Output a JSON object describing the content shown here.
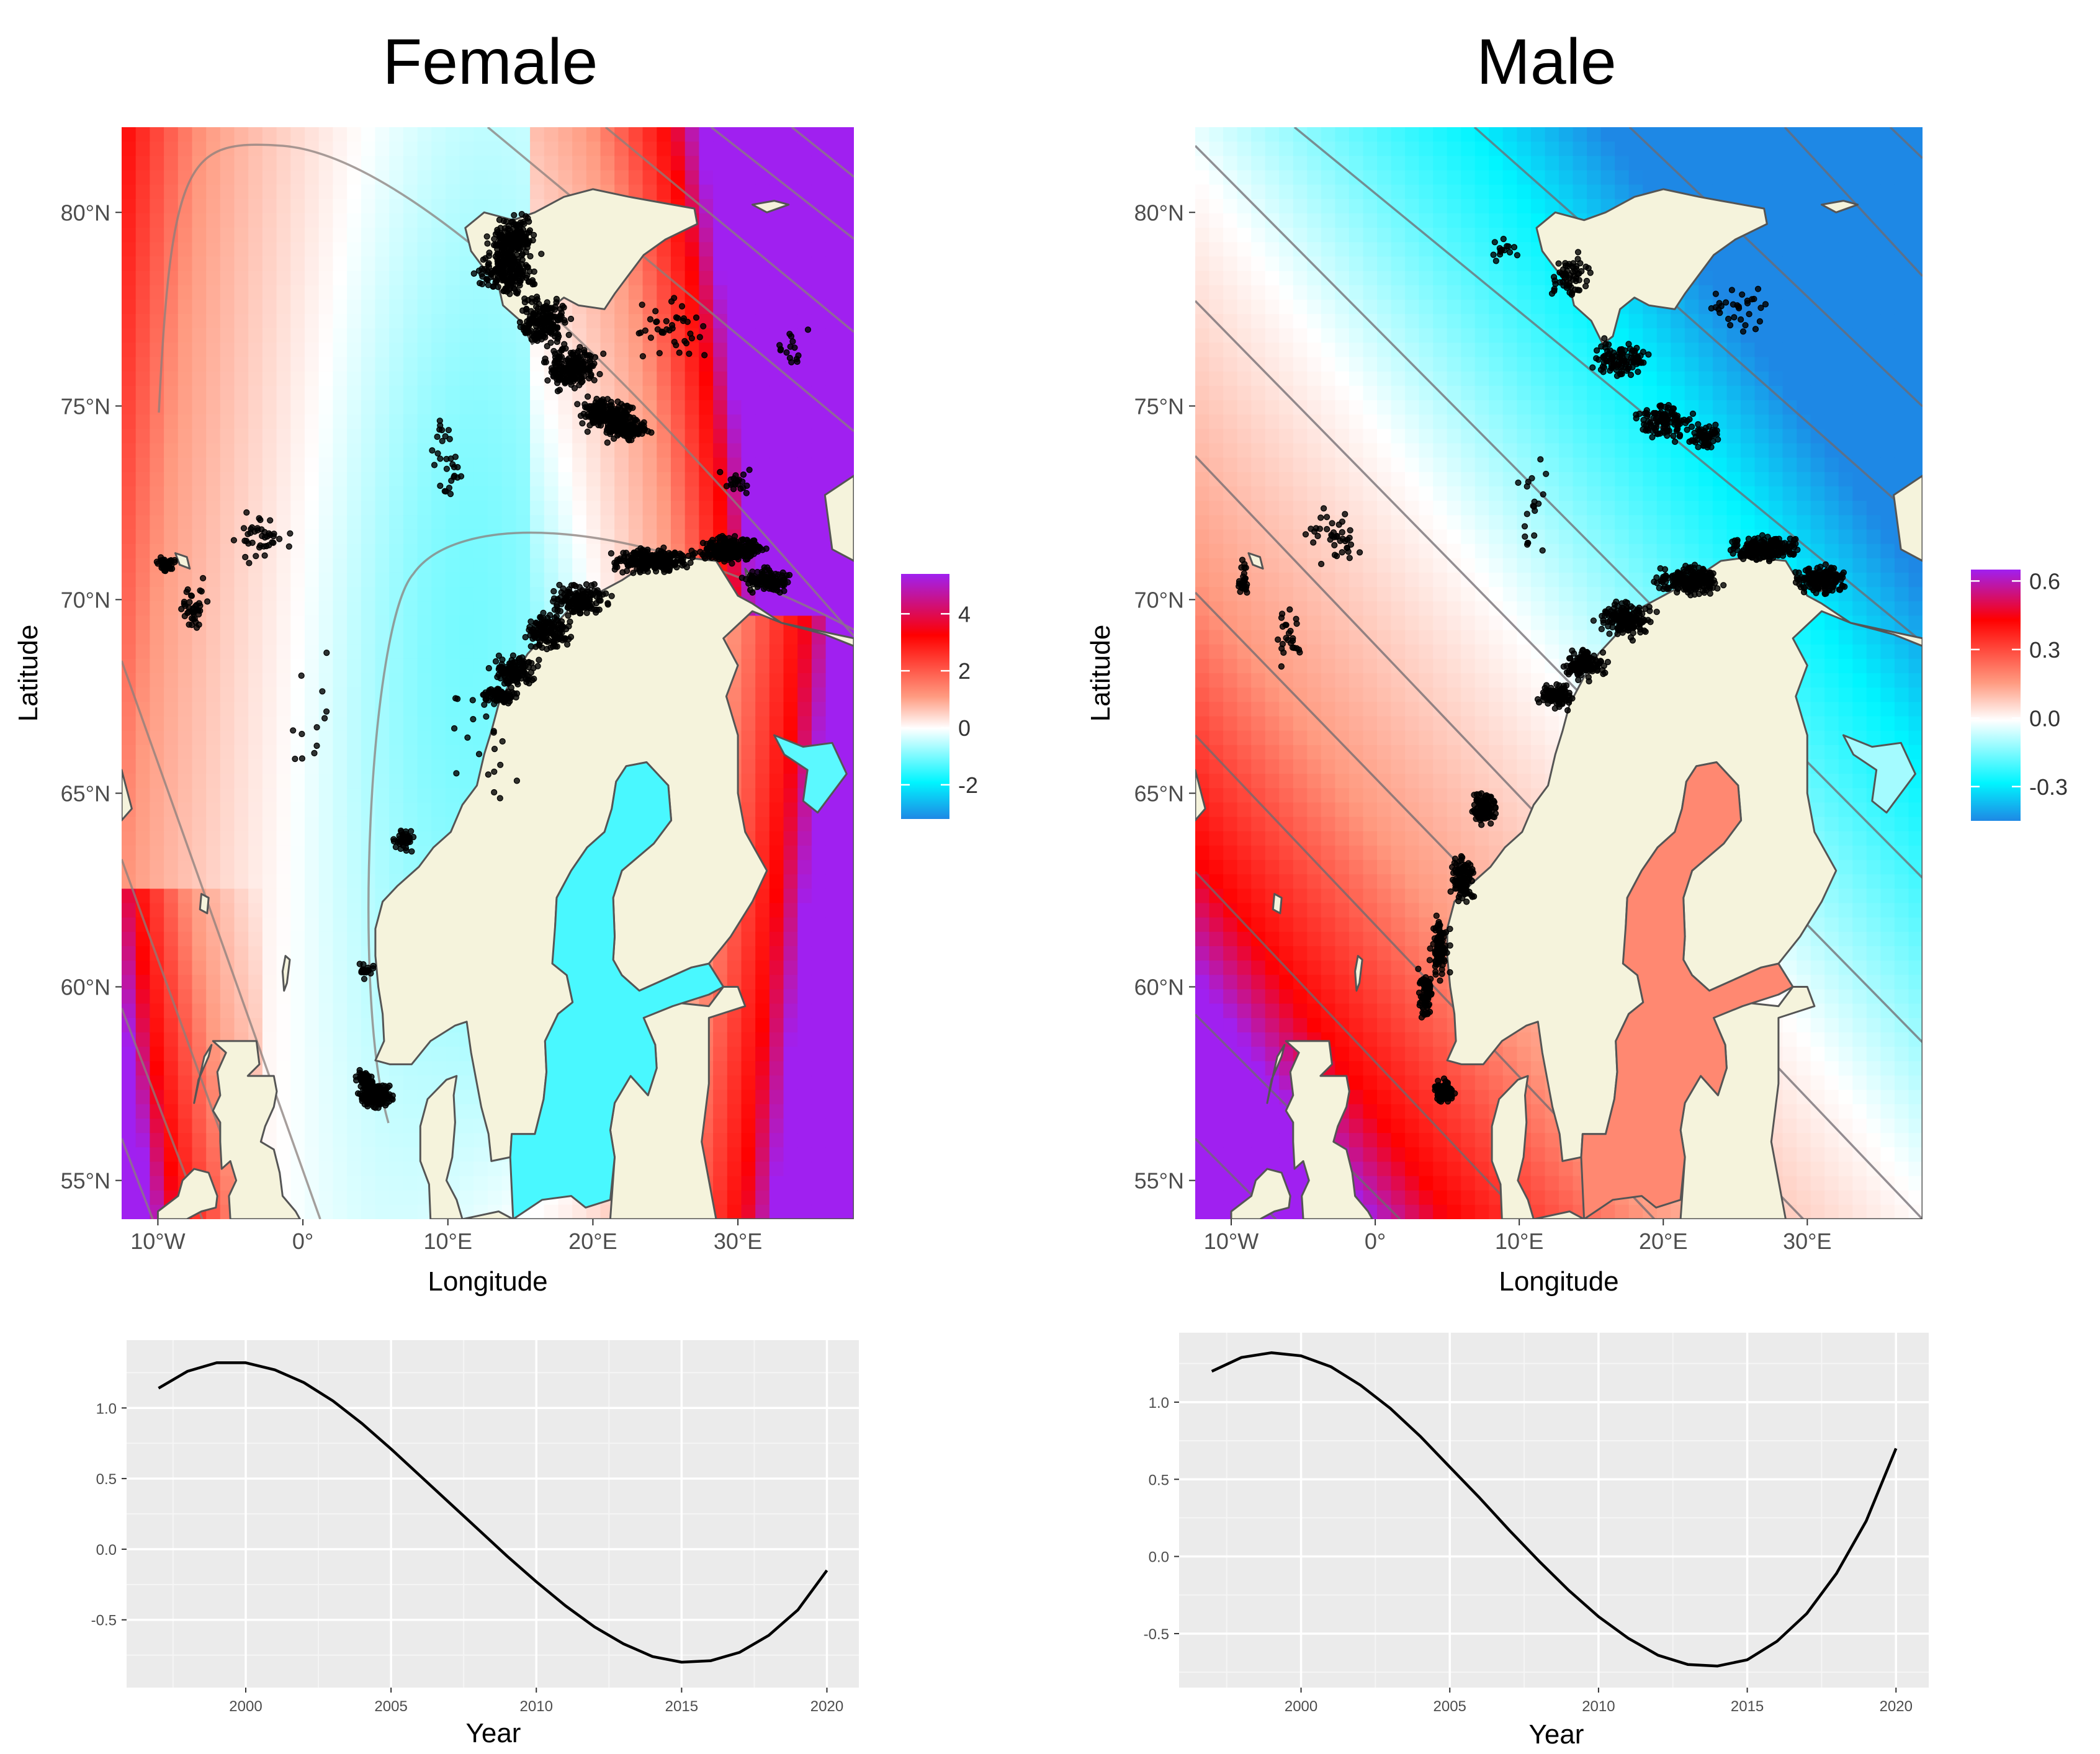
{
  "chart_data": [
    {
      "type": "heatmap",
      "title": "Female",
      "xlabel": "Longitude",
      "ylabel": "Latitude",
      "x_ticks": [
        "10°W",
        "0°",
        "10°E",
        "20°E",
        "30°E"
      ],
      "x_tick_values": [
        -10,
        0,
        10,
        20,
        30
      ],
      "y_ticks": [
        "55°N",
        "60°N",
        "65°N",
        "70°N",
        "75°N",
        "80°N"
      ],
      "y_tick_values": [
        55,
        60,
        65,
        70,
        75,
        80
      ],
      "xlim": [
        -12.5,
        38
      ],
      "ylim": [
        54,
        82.2
      ],
      "colorbar": {
        "ticks": [
          "4",
          "2",
          "0",
          "-2"
        ],
        "tick_values": [
          4,
          2,
          0,
          -2
        ],
        "range": [
          -3.2,
          5.4
        ]
      },
      "colors": {
        "negative_high": "#1e88e5",
        "negative": "#00f5ff",
        "zero": "#ffffff",
        "positive": "#ff0000",
        "positive_high": "#a020f0",
        "land": "#f5f3dc"
      }
    },
    {
      "type": "heatmap",
      "title": "Male",
      "xlabel": "Longitude",
      "ylabel": "Latitude",
      "x_ticks": [
        "10°W",
        "0°",
        "10°E",
        "20°E",
        "30°E"
      ],
      "x_tick_values": [
        -10,
        0,
        10,
        20,
        30
      ],
      "y_ticks": [
        "55°N",
        "60°N",
        "65°N",
        "70°N",
        "75°N",
        "80°N"
      ],
      "y_tick_values": [
        55,
        60,
        65,
        70,
        75,
        80
      ],
      "xlim": [
        -12.5,
        38
      ],
      "ylim": [
        54,
        82.2
      ],
      "colorbar": {
        "ticks": [
          "0.6",
          "0.3",
          "0.0",
          "-0.3"
        ],
        "tick_values": [
          0.6,
          0.3,
          0.0,
          -0.3
        ],
        "range": [
          -0.45,
          0.65
        ]
      },
      "colors": {
        "negative_high": "#1e88e5",
        "negative": "#00f5ff",
        "zero": "#ffffff",
        "positive": "#ff0000",
        "positive_high": "#a020f0",
        "land": "#f5f3dc"
      }
    },
    {
      "type": "line",
      "xlabel": "Year",
      "ylabel": "",
      "x": [
        1997,
        1998,
        1999,
        2000,
        2001,
        2002,
        2003,
        2004,
        2005,
        2006,
        2007,
        2008,
        2009,
        2010,
        2011,
        2012,
        2013,
        2014,
        2015,
        2016,
        2017,
        2018,
        2019,
        2020
      ],
      "y": [
        1.14,
        1.26,
        1.32,
        1.32,
        1.27,
        1.18,
        1.05,
        0.89,
        0.71,
        0.52,
        0.33,
        0.14,
        -0.05,
        -0.23,
        -0.4,
        -0.55,
        -0.67,
        -0.76,
        -0.8,
        -0.79,
        -0.73,
        -0.61,
        -0.43,
        -0.15
      ],
      "x_ticks": [
        "2000",
        "2005",
        "2010",
        "2015",
        "2020"
      ],
      "y_ticks": [
        "1.0",
        "0.5",
        "0.0",
        "-0.5"
      ],
      "xlim": [
        1995.9,
        2021.1
      ],
      "ylim": [
        -0.98,
        1.48
      ]
    },
    {
      "type": "line",
      "xlabel": "Year",
      "ylabel": "",
      "x": [
        1997,
        1998,
        1999,
        2000,
        2001,
        2002,
        2003,
        2004,
        2005,
        2006,
        2007,
        2008,
        2009,
        2010,
        2011,
        2012,
        2013,
        2014,
        2015,
        2016,
        2017,
        2018,
        2019,
        2020
      ],
      "y": [
        1.2,
        1.29,
        1.32,
        1.3,
        1.23,
        1.11,
        0.96,
        0.78,
        0.58,
        0.38,
        0.17,
        -0.03,
        -0.22,
        -0.39,
        -0.53,
        -0.64,
        -0.7,
        -0.71,
        -0.67,
        -0.55,
        -0.37,
        -0.11,
        0.23,
        0.7
      ],
      "x_ticks": [
        "2000",
        "2005",
        "2010",
        "2015",
        "2020"
      ],
      "y_ticks": [
        "1.0",
        "0.5",
        "0.0",
        "-0.5"
      ],
      "xlim": [
        1995.9,
        2021.1
      ],
      "ylim": [
        -0.85,
        1.45
      ]
    }
  ]
}
